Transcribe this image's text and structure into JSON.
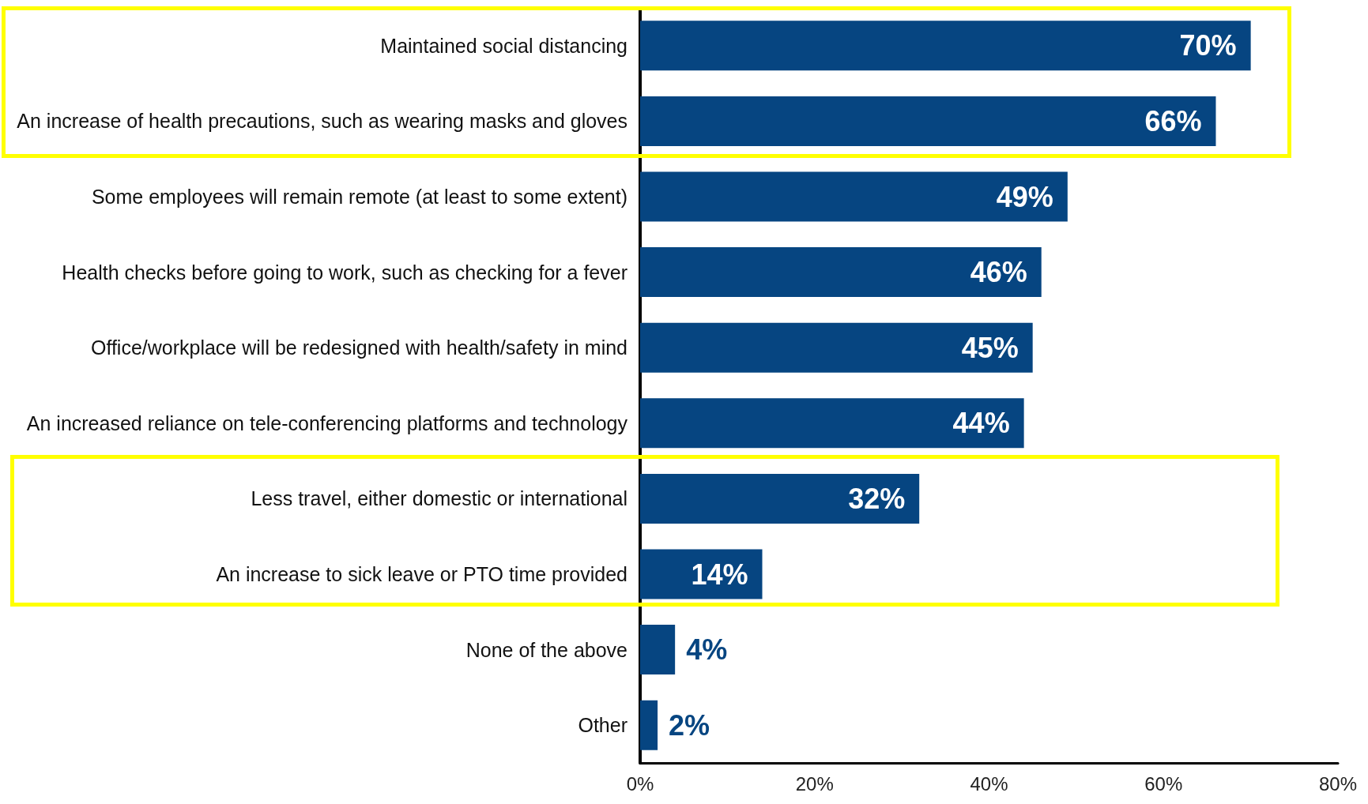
{
  "chart_data": {
    "type": "bar",
    "orientation": "horizontal",
    "categories": [
      "Maintained social distancing",
      "An increase of health precautions, such as wearing masks and gloves",
      "Some employees will remain remote (at least to some extent)",
      "Health checks before going to work, such as checking for a fever",
      "Office/workplace will be redesigned with health/safety in mind",
      "An increased reliance on tele-conferencing platforms and technology",
      "Less travel, either domestic or international",
      "An increase to sick leave or PTO time provided",
      "None of the above",
      "Other"
    ],
    "values": [
      70,
      66,
      49,
      46,
      45,
      44,
      32,
      14,
      4,
      2
    ],
    "value_labels": [
      "70%",
      "66%",
      "49%",
      "46%",
      "45%",
      "44%",
      "32%",
      "14%",
      "4%",
      "2%"
    ],
    "color": "#064581",
    "xlim": [
      0,
      80
    ],
    "xticks": [
      {
        "value": 0,
        "label": "0%"
      },
      {
        "value": 20,
        "label": "20%"
      },
      {
        "value": 40,
        "label": "40%"
      },
      {
        "value": 60,
        "label": "60%"
      },
      {
        "value": 80,
        "label": "80%"
      }
    ]
  }
}
